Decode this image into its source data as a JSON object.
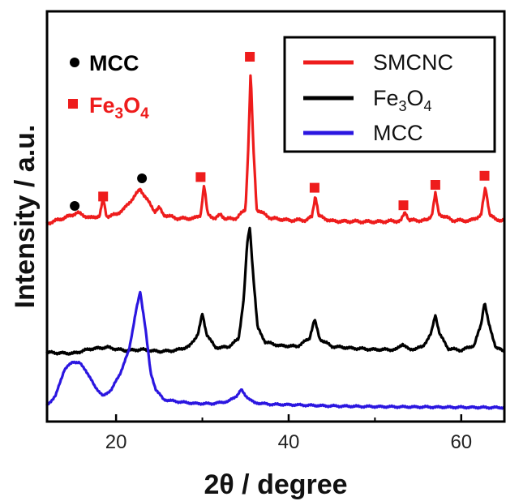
{
  "chart_data": {
    "type": "line",
    "title": "",
    "xlabel": "2θ / degree",
    "ylabel": "Intensity / a.u.",
    "xlim": [
      12,
      65
    ],
    "xticks": [
      20,
      40,
      60
    ],
    "yticks": "none",
    "grid": false,
    "legend_position": "top-right",
    "colors": {
      "SMCNC": "#ee1c1c",
      "Fe3O4": "#000000",
      "MCC": "#2b16e0"
    },
    "series": [
      {
        "name": "SMCNC",
        "color": "#ee1c1c",
        "offset": 0.56,
        "points": [
          [
            12,
            0.011
          ],
          [
            14,
            0.028
          ],
          [
            15.5,
            0.044
          ],
          [
            17,
            0.028
          ],
          [
            18.1,
            0.034
          ],
          [
            18.5,
            0.089
          ],
          [
            18.9,
            0.033
          ],
          [
            20,
            0.038
          ],
          [
            21,
            0.058
          ],
          [
            22,
            0.09
          ],
          [
            22.8,
            0.117
          ],
          [
            23.6,
            0.084
          ],
          [
            24.5,
            0.048
          ],
          [
            25,
            0.06
          ],
          [
            25.5,
            0.038
          ],
          [
            27,
            0.027
          ],
          [
            29,
            0.026
          ],
          [
            29.8,
            0.038
          ],
          [
            30.2,
            0.13
          ],
          [
            30.6,
            0.041
          ],
          [
            31.5,
            0.025
          ],
          [
            32.1,
            0.04
          ],
          [
            32.7,
            0.024
          ],
          [
            34,
            0.028
          ],
          [
            35,
            0.055
          ],
          [
            35.3,
            0.23
          ],
          [
            35.6,
            0.48
          ],
          [
            35.9,
            0.25
          ],
          [
            36.3,
            0.055
          ],
          [
            37,
            0.042
          ],
          [
            38,
            0.027
          ],
          [
            40,
            0.021
          ],
          [
            42,
            0.021
          ],
          [
            42.7,
            0.032
          ],
          [
            43.1,
            0.099
          ],
          [
            43.5,
            0.034
          ],
          [
            45,
            0.018
          ],
          [
            48,
            0.017
          ],
          [
            50,
            0.016
          ],
          [
            53,
            0.019
          ],
          [
            53.5,
            0.046
          ],
          [
            54,
            0.021
          ],
          [
            56,
            0.02
          ],
          [
            56.6,
            0.038
          ],
          [
            57,
            0.104
          ],
          [
            57.4,
            0.04
          ],
          [
            59,
            0.021
          ],
          [
            61,
            0.019
          ],
          [
            62.3,
            0.036
          ],
          [
            62.8,
            0.124
          ],
          [
            63.3,
            0.04
          ],
          [
            64,
            0.022
          ],
          [
            65,
            0.021
          ]
        ]
      },
      {
        "name": "Fe3O4",
        "color": "#000000",
        "offset": 0.17,
        "points": [
          [
            12,
            0.003
          ],
          [
            15,
            0.0
          ],
          [
            17,
            0.014
          ],
          [
            19,
            0.019
          ],
          [
            21,
            0.009
          ],
          [
            23,
            0.012
          ],
          [
            25,
            0.006
          ],
          [
            27,
            0.01
          ],
          [
            28.5,
            0.022
          ],
          [
            29.5,
            0.06
          ],
          [
            30,
            0.122
          ],
          [
            30.5,
            0.06
          ],
          [
            31.5,
            0.018
          ],
          [
            33,
            0.02
          ],
          [
            34.2,
            0.045
          ],
          [
            34.8,
            0.17
          ],
          [
            35.2,
            0.34
          ],
          [
            35.5,
            0.39
          ],
          [
            35.9,
            0.24
          ],
          [
            36.4,
            0.08
          ],
          [
            37.3,
            0.035
          ],
          [
            39,
            0.024
          ],
          [
            41,
            0.022
          ],
          [
            42.4,
            0.046
          ],
          [
            43,
            0.105
          ],
          [
            43.6,
            0.045
          ],
          [
            45,
            0.022
          ],
          [
            47,
            0.017
          ],
          [
            50,
            0.012
          ],
          [
            52.5,
            0.012
          ],
          [
            53.2,
            0.03
          ],
          [
            54,
            0.011
          ],
          [
            55.5,
            0.02
          ],
          [
            56.5,
            0.06
          ],
          [
            57,
            0.12
          ],
          [
            57.5,
            0.06
          ],
          [
            58.5,
            0.015
          ],
          [
            60,
            0.01
          ],
          [
            61.5,
            0.025
          ],
          [
            62.3,
            0.09
          ],
          [
            62.7,
            0.16
          ],
          [
            63.2,
            0.09
          ],
          [
            64,
            0.02
          ],
          [
            65,
            0.005
          ]
        ]
      },
      {
        "name": "MCC",
        "color": "#2b16e0",
        "offset": 0.0,
        "points": [
          [
            12,
            0.01
          ],
          [
            13,
            0.04
          ],
          [
            14,
            0.12
          ],
          [
            15,
            0.145
          ],
          [
            15.8,
            0.14
          ],
          [
            16.5,
            0.118
          ],
          [
            17.5,
            0.07
          ],
          [
            18.5,
            0.038
          ],
          [
            19.5,
            0.06
          ],
          [
            20.5,
            0.11
          ],
          [
            21.5,
            0.18
          ],
          [
            22.3,
            0.3
          ],
          [
            22.8,
            0.36
          ],
          [
            23.4,
            0.25
          ],
          [
            24,
            0.11
          ],
          [
            24.6,
            0.06
          ],
          [
            25.5,
            0.028
          ],
          [
            27,
            0.022
          ],
          [
            29,
            0.016
          ],
          [
            31,
            0.015
          ],
          [
            33,
            0.022
          ],
          [
            34,
            0.04
          ],
          [
            34.5,
            0.058
          ],
          [
            35,
            0.04
          ],
          [
            36,
            0.018
          ],
          [
            38,
            0.013
          ],
          [
            40,
            0.012
          ],
          [
            45,
            0.008
          ],
          [
            50,
            0.006
          ],
          [
            55,
            0.005
          ],
          [
            60,
            0.004
          ],
          [
            65,
            0.003
          ]
        ]
      }
    ],
    "legend": [
      {
        "label": "SMCNC",
        "color": "#ee1c1c"
      },
      {
        "label": "Fe",
        "sub1": "3",
        "mid": "O",
        "sub2": "4",
        "color": "#000000"
      },
      {
        "label": "MCC",
        "color": "#2b16e0"
      }
    ],
    "annotations": {
      "mcc_key": {
        "text": "MCC",
        "color": "#000000",
        "symbol": "circle"
      },
      "fe3o4_key": {
        "text": "Fe",
        "sub1": "3",
        "mid": "O",
        "sub2": "4",
        "color": "#ee1c1c",
        "symbol": "square"
      },
      "mcc_markers": [
        [
          15.2,
          0.625
        ],
        [
          23.0,
          0.71
        ]
      ],
      "fe3o4_markers": [
        [
          18.5,
          0.654
        ],
        [
          29.8,
          0.714
        ],
        [
          35.5,
          1.085
        ],
        [
          43.0,
          0.681
        ],
        [
          53.3,
          0.627
        ],
        [
          57.0,
          0.69
        ],
        [
          62.7,
          0.718
        ]
      ]
    }
  }
}
